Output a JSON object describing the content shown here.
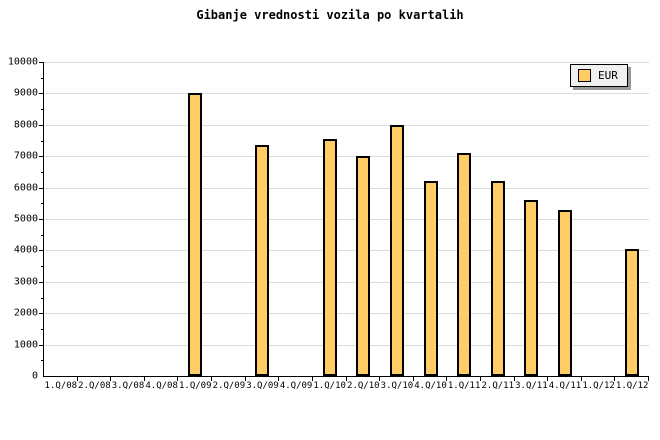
{
  "title": "Gibanje vrednosti vozila po kvartalih",
  "legend": {
    "label": "EUR",
    "position": "top-right"
  },
  "colors": {
    "background": "#FFFFFF",
    "bar_fill": "#FFCC66",
    "bar_border": "#000000",
    "grid": "#DDDDDD",
    "axis": "#000000",
    "legend_bg": "#F0F0F0",
    "legend_shadow": "#999999",
    "text": "#000000"
  },
  "chart_data": {
    "type": "bar",
    "title": "Gibanje vrednosti vozila po kvartalih",
    "xlabel": "",
    "ylabel": "",
    "categories": [
      "1.Q/08",
      "2.Q/08",
      "3.Q/08",
      "4.Q/08",
      "1.Q/09",
      "2.Q/09",
      "3.Q/09",
      "4.Q/09",
      "1.Q/10",
      "2.Q/10",
      "3.Q/10",
      "4.Q/10",
      "1.Q/11",
      "2.Q/11",
      "3.Q/11",
      "4.Q/11",
      "1.Q/12",
      "1.Q/12"
    ],
    "series": [
      {
        "name": "EUR",
        "values": [
          null,
          null,
          null,
          null,
          9000,
          null,
          7350,
          null,
          7550,
          7000,
          8000,
          6200,
          7100,
          6200,
          5600,
          5300,
          null,
          4050
        ]
      }
    ],
    "ylim": [
      0,
      10000
    ],
    "ytick_interval": 1000,
    "yminor_interval": 500,
    "ytick_labels": [
      "0",
      "1000",
      "2000",
      "3000",
      "4000",
      "5000",
      "6000",
      "7000",
      "8000",
      "9000",
      "10000"
    ],
    "grid": "horizontal",
    "legend_position": "top-right"
  }
}
